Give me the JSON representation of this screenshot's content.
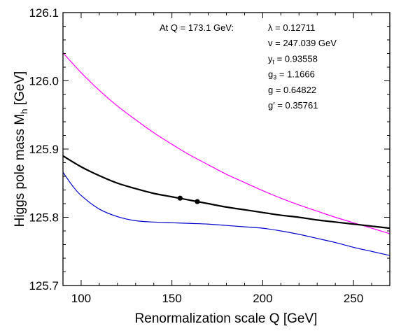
{
  "chart_data": {
    "type": "line",
    "xlabel": "Renormalization scale Q  [GeV]",
    "ylabel_main": "Higgs pole mass  M",
    "ylabel_sub": "h",
    "ylabel_unit": "  [GeV]",
    "xlim": [
      90,
      270
    ],
    "ylim": [
      125.7,
      126.1
    ],
    "x_ticks": [
      100,
      150,
      200,
      250
    ],
    "x_tick_labels": [
      "100",
      "150",
      "200",
      "250"
    ],
    "y_ticks": [
      125.7,
      125.8,
      125.9,
      126.0,
      126.1
    ],
    "y_tick_labels": [
      "125.7",
      "125.8",
      "125.9",
      "126.0",
      "126.1"
    ],
    "grid": false,
    "annotation_lead": "At Q = 173.1 GeV:",
    "annotations": [
      {
        "main": "λ = 0.12711",
        "sub": "",
        "rest": ""
      },
      {
        "main": "v = 247.039 GeV",
        "sub": "",
        "rest": ""
      },
      {
        "main": "y",
        "sub": "t",
        "rest": " = 0.93558"
      },
      {
        "main": "g",
        "sub": "3",
        "rest": " = 1.1666"
      },
      {
        "main": "g = 0.64822",
        "sub": "",
        "rest": ""
      },
      {
        "main": "g′ = 0.35761",
        "sub": "",
        "rest": ""
      }
    ],
    "series": [
      {
        "color": "#ff00ff",
        "stroke_width": 1.2,
        "x": [
          90,
          100,
          110,
          120,
          130,
          140,
          150,
          160,
          170,
          180,
          190,
          200,
          210,
          220,
          230,
          240,
          250,
          260,
          270
        ],
        "y": [
          126.041,
          126.012,
          125.986,
          125.963,
          125.943,
          125.924,
          125.907,
          125.891,
          125.877,
          125.863,
          125.851,
          125.839,
          125.828,
          125.818,
          125.809,
          125.8,
          125.792,
          125.784,
          125.776
        ]
      },
      {
        "color": "#000000",
        "stroke_width": 2.2,
        "x": [
          90,
          100,
          110,
          120,
          130,
          140,
          150,
          160,
          170,
          180,
          190,
          200,
          210,
          220,
          230,
          240,
          250,
          260,
          270
        ],
        "y": [
          125.89,
          125.874,
          125.861,
          125.85,
          125.842,
          125.835,
          125.83,
          125.825,
          125.82,
          125.815,
          125.811,
          125.807,
          125.803,
          125.8,
          125.796,
          125.793,
          125.79,
          125.787,
          125.784
        ]
      },
      {
        "color": "#0000cc",
        "stroke_width": 1.2,
        "x": [
          90,
          95,
          100,
          110,
          120,
          130,
          140,
          150,
          160,
          170,
          180,
          190,
          200,
          210,
          220,
          230,
          240,
          250,
          260,
          270
        ],
        "y": [
          125.866,
          125.847,
          125.832,
          125.812,
          125.801,
          125.795,
          125.793,
          125.792,
          125.791,
          125.79,
          125.788,
          125.786,
          125.784,
          125.78,
          125.775,
          125.769,
          125.763,
          125.756,
          125.75,
          125.744
        ]
      }
    ],
    "markers": [
      {
        "x": 154.5,
        "y": 125.828
      },
      {
        "x": 164,
        "y": 125.823
      }
    ]
  }
}
